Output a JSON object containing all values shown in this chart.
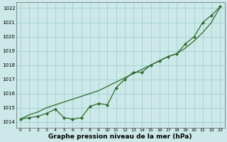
{
  "x": [
    0,
    1,
    2,
    3,
    4,
    5,
    6,
    7,
    8,
    9,
    10,
    11,
    12,
    13,
    14,
    15,
    16,
    17,
    18,
    19,
    20,
    21,
    22,
    23
  ],
  "line_jagged": [
    1014.2,
    1014.3,
    1014.4,
    1014.6,
    1014.9,
    1014.3,
    1014.2,
    1014.3,
    1015.1,
    1015.3,
    1015.2,
    1016.4,
    1017.0,
    1017.5,
    1017.5,
    1018.0,
    1018.3,
    1018.6,
    1018.8,
    1019.5,
    1020.0,
    1021.0,
    1021.5,
    1022.1
  ],
  "line_smooth": [
    1014.2,
    1014.5,
    1014.7,
    1015.0,
    1015.2,
    1015.4,
    1015.6,
    1015.8,
    1016.0,
    1016.2,
    1016.5,
    1016.8,
    1017.1,
    1017.4,
    1017.7,
    1018.0,
    1018.3,
    1018.6,
    1018.8,
    1019.2,
    1019.7,
    1020.3,
    1021.0,
    1022.1
  ],
  "line_color": "#2d6a2d",
  "bg_color": "#cce8e8",
  "grid_color": "#99cccc",
  "ylabel_ticks": [
    1014,
    1015,
    1016,
    1017,
    1018,
    1019,
    1020,
    1021,
    1022
  ],
  "xlabel": "Graphe pression niveau de la mer (hPa)",
  "ylim": [
    1013.6,
    1022.4
  ],
  "xlim": [
    -0.5,
    23.5
  ]
}
